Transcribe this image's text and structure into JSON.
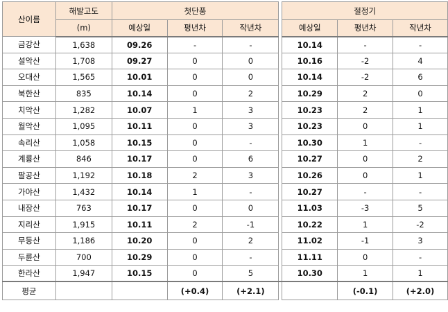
{
  "headers": {
    "mountain": "산이름",
    "altitude": "해발고도",
    "altitude_unit": "(m)",
    "first_foliage": "첫단풍",
    "peak": "절정기",
    "forecast_date": "예상일",
    "vs_normal": "평년차",
    "vs_last_year": "작년차"
  },
  "rows": [
    {
      "name": "금강산",
      "alt": "1,638",
      "f_date": "09.26",
      "f_norm": "-",
      "f_last": "-",
      "p_date": "10.14",
      "p_norm": "-",
      "p_last": "-"
    },
    {
      "name": "설악산",
      "alt": "1,708",
      "f_date": "09.27",
      "f_norm": "0",
      "f_last": "0",
      "p_date": "10.16",
      "p_norm": "-2",
      "p_last": "4"
    },
    {
      "name": "오대산",
      "alt": "1,565",
      "f_date": "10.01",
      "f_norm": "0",
      "f_last": "0",
      "p_date": "10.14",
      "p_norm": "-2",
      "p_last": "6"
    },
    {
      "name": "북한산",
      "alt": "835",
      "f_date": "10.14",
      "f_norm": "0",
      "f_last": "2",
      "p_date": "10.29",
      "p_norm": "2",
      "p_last": "0"
    },
    {
      "name": "치악산",
      "alt": "1,282",
      "f_date": "10.07",
      "f_norm": "1",
      "f_last": "3",
      "p_date": "10.23",
      "p_norm": "2",
      "p_last": "1"
    },
    {
      "name": "월악산",
      "alt": "1,095",
      "f_date": "10.11",
      "f_norm": "0",
      "f_last": "3",
      "p_date": "10.23",
      "p_norm": "0",
      "p_last": "1"
    },
    {
      "name": "속리산",
      "alt": "1,058",
      "f_date": "10.15",
      "f_norm": "0",
      "f_last": "-",
      "p_date": "10.30",
      "p_norm": "1",
      "p_last": "-"
    },
    {
      "name": "계룡산",
      "alt": "846",
      "f_date": "10.17",
      "f_norm": "0",
      "f_last": "6",
      "p_date": "10.27",
      "p_norm": "0",
      "p_last": "2"
    },
    {
      "name": "팔공산",
      "alt": "1,192",
      "f_date": "10.18",
      "f_norm": "2",
      "f_last": "3",
      "p_date": "10.26",
      "p_norm": "0",
      "p_last": "1"
    },
    {
      "name": "가야산",
      "alt": "1,432",
      "f_date": "10.14",
      "f_norm": "1",
      "f_last": "-",
      "p_date": "10.27",
      "p_norm": "-",
      "p_last": "-"
    },
    {
      "name": "내장산",
      "alt": "763",
      "f_date": "10.17",
      "f_norm": "0",
      "f_last": "0",
      "p_date": "11.03",
      "p_norm": "-3",
      "p_last": "5"
    },
    {
      "name": "지리산",
      "alt": "1,915",
      "f_date": "10.11",
      "f_norm": "2",
      "f_last": "-1",
      "p_date": "10.22",
      "p_norm": "1",
      "p_last": "-2"
    },
    {
      "name": "무등산",
      "alt": "1,186",
      "f_date": "10.20",
      "f_norm": "0",
      "f_last": "2",
      "p_date": "11.02",
      "p_norm": "-1",
      "p_last": "3"
    },
    {
      "name": "두륜산",
      "alt": "700",
      "f_date": "10.29",
      "f_norm": "0",
      "f_last": "-",
      "p_date": "11.11",
      "p_norm": "0",
      "p_last": "-"
    },
    {
      "name": "한라산",
      "alt": "1,947",
      "f_date": "10.15",
      "f_norm": "0",
      "f_last": "5",
      "p_date": "10.30",
      "p_norm": "1",
      "p_last": "1"
    }
  ],
  "average": {
    "label": "평균",
    "f_norm": "(+0.4)",
    "f_last": "(+2.1)",
    "p_norm": "(-0.1)",
    "p_last": "(+2.0)"
  }
}
